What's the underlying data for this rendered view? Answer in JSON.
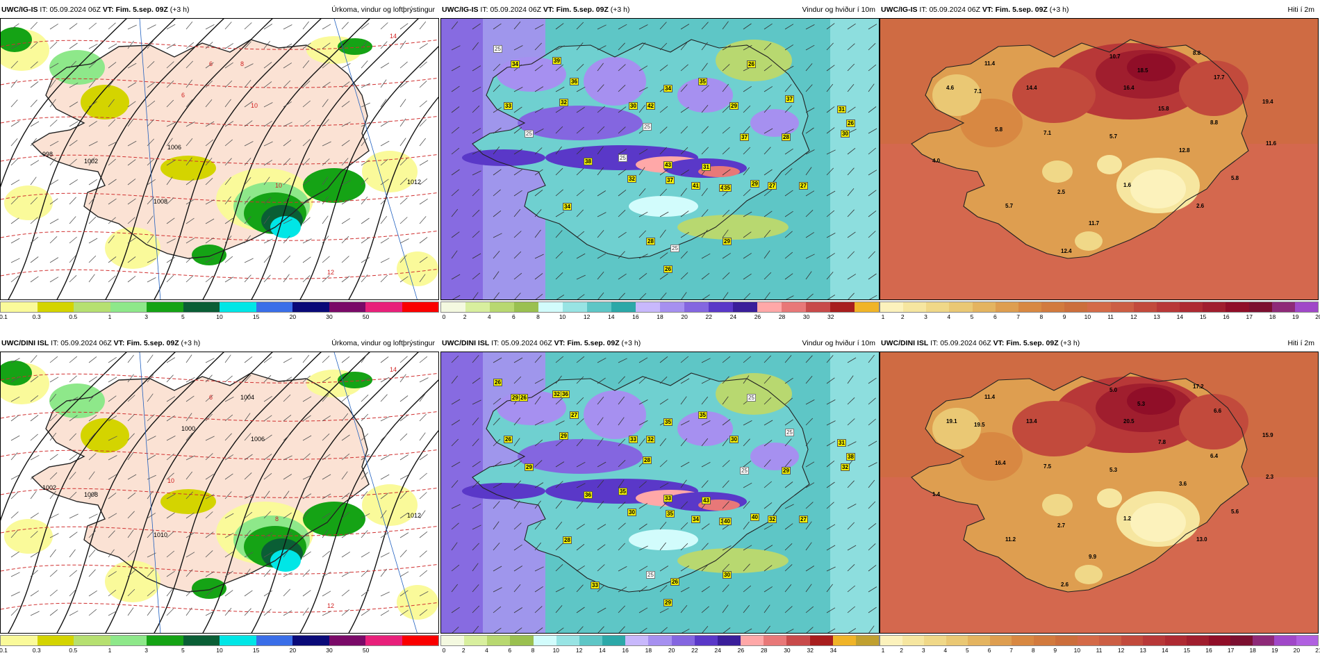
{
  "rows": [
    {
      "model": "UWC/IG-IS",
      "panels": [
        {
          "id": "precip",
          "model": "UWC/IG-IS",
          "it_label": "IT:",
          "it": "05.09.2024 06Z",
          "vt_label": "VT:",
          "vt": "Fim. 5.sep. 09Z",
          "lead": "(+3 h)",
          "title": "Úrkoma, vindur og loftþrýstingur",
          "colorbar": [
            "#fafa9a",
            "#d4d400",
            "#b6e070",
            "#8ee88a",
            "#15a315",
            "#0a5e35",
            "#00e6e6",
            "#3a6ee8",
            "#0a0a78",
            "#7a0a68",
            "#e8207a",
            "#fa0000"
          ],
          "ticks": [
            "0.1",
            "0.3",
            "0.5",
            "1",
            "3",
            "5",
            "10",
            "15",
            "20",
            "30",
            "50"
          ],
          "labels": [
            {
              "t": "14",
              "c": "red"
            },
            {
              "t": "8",
              "c": "red"
            },
            {
              "t": "10",
              "c": "red"
            },
            {
              "t": "6",
              "c": "red"
            },
            {
              "t": "1002",
              "c": "black"
            },
            {
              "t": "1008",
              "c": "black"
            },
            {
              "t": "1012",
              "c": "black"
            },
            {
              "t": "998",
              "c": "black"
            },
            {
              "t": "1006",
              "c": "black"
            },
            {
              "t": "10",
              "c": "red"
            },
            {
              "t": "6",
              "c": "red"
            },
            {
              "t": "12",
              "c": "red"
            }
          ]
        },
        {
          "id": "wind",
          "model": "UWC/IG-IS",
          "it_label": "IT:",
          "it": "05.09.2024 06Z",
          "vt_label": "VT:",
          "vt": "Fim. 5.sep. 09Z",
          "lead": "(+3 h)",
          "title": "Vindur og hviður í 10m",
          "colorbar": [
            "#f4f9e0",
            "#d8ef9e",
            "#b8d870",
            "#9ac050",
            "#d2fcfc",
            "#98e4e4",
            "#5ec6c6",
            "#2ca8a8",
            "#c8b8fc",
            "#a690f0",
            "#8466e0",
            "#5a38c8",
            "#3a1e9a",
            "#ffa8a8",
            "#e87878",
            "#c84a4a",
            "#a81e1e",
            "#f0b428"
          ],
          "ticks": [
            "0",
            "2",
            "4",
            "6",
            "8",
            "10",
            "12",
            "14",
            "16",
            "18",
            "20",
            "22",
            "24",
            "26",
            "28",
            "30",
            "32"
          ],
          "labels": [
            "34",
            "39",
            "25",
            "36",
            "33",
            "32",
            "25",
            "30",
            "42",
            "34",
            "35",
            "25",
            "29",
            "26",
            "37",
            "31",
            "30",
            "26",
            "37",
            "25",
            "38",
            "32",
            "37",
            "43",
            "41",
            "42",
            "35",
            "31",
            "29",
            "27",
            "28",
            "27",
            "34",
            "29",
            "25",
            "28",
            "26"
          ]
        },
        {
          "id": "temp",
          "model": "UWC/IG-IS",
          "it_label": "IT:",
          "it": "05.09.2024 06Z",
          "vt_label": "VT:",
          "vt": "Fim. 5.sep. 09Z",
          "lead": "(+3 h)",
          "title": "Hiti í 2m",
          "colorbar": [
            "#fcf2bc",
            "#f6e6a0",
            "#f0d888",
            "#eac874",
            "#e4b460",
            "#de9e50",
            "#d88842",
            "#d27a3e",
            "#cc6e3c",
            "#d46a48",
            "#cc5e44",
            "#c24a3c",
            "#b83838",
            "#ae2a32",
            "#a01e2e",
            "#900e28",
            "#7c1030",
            "#8e2a78",
            "#a048c8"
          ],
          "ticks": [
            "1",
            "2",
            "3",
            "4",
            "5",
            "6",
            "7",
            "8",
            "9",
            "10",
            "11",
            "12",
            "13",
            "14",
            "15",
            "16",
            "17",
            "18",
            "19",
            "20"
          ],
          "labels": [
            "11.4",
            "10.7",
            "8.8",
            "4.6",
            "7.1",
            "14.4",
            "18.5",
            "16.4",
            "17.7",
            "15.8",
            "19.4",
            "8.8",
            "5.8",
            "7.1",
            "5.7",
            "12.8",
            "11.6",
            "4.0",
            "2.5",
            "1.6",
            "5.8",
            "5.7",
            "2.6",
            "11.7",
            "12.4"
          ]
        }
      ]
    },
    {
      "model": "UWC/DINI ISL",
      "panels": [
        {
          "id": "precip",
          "model": "UWC/DINI ISL",
          "it_label": "IT:",
          "it": "05.09.2024 06Z",
          "vt_label": "VT:",
          "vt": "Fim. 5.sep. 09Z",
          "lead": "(+3 h)",
          "title": "Úrkoma, vindur og loftþrýstingur",
          "colorbar": [
            "#fafa9a",
            "#d4d400",
            "#b6e070",
            "#8ee88a",
            "#15a315",
            "#0a5e35",
            "#00e6e6",
            "#3a6ee8",
            "#0a0a78",
            "#7a0a68",
            "#e8207a",
            "#fa0000"
          ],
          "ticks": [
            "0.1",
            "0.3",
            "0.5",
            "1",
            "3",
            "5",
            "10",
            "15",
            "20",
            "30",
            "50"
          ],
          "labels": [
            {
              "t": "14",
              "c": "red"
            },
            {
              "t": "1004",
              "c": "black"
            },
            {
              "t": "1006",
              "c": "black"
            },
            {
              "t": "1000",
              "c": "black"
            },
            {
              "t": "1008",
              "c": "black"
            },
            {
              "t": "1010",
              "c": "black"
            },
            {
              "t": "1012",
              "c": "black"
            },
            {
              "t": "1002",
              "c": "black"
            },
            {
              "t": "10",
              "c": "red"
            },
            {
              "t": "8",
              "c": "red"
            },
            {
              "t": "6",
              "c": "red"
            },
            {
              "t": "12",
              "c": "red"
            }
          ]
        },
        {
          "id": "wind",
          "model": "UWC/DINI ISL",
          "it_label": "IT:",
          "it": "05.09.2024 06Z",
          "vt_label": "VT:",
          "vt": "Fim. 5.sep. 09Z",
          "lead": "(+3 h)",
          "title": "Vindur og hviður í 10m",
          "colorbar": [
            "#f4f9e0",
            "#d8ef9e",
            "#b8d870",
            "#9ac050",
            "#d2fcfc",
            "#98e4e4",
            "#5ec6c6",
            "#2ca8a8",
            "#c8b8fc",
            "#a690f0",
            "#8466e0",
            "#5a38c8",
            "#3a1e9a",
            "#ffa8a8",
            "#e87878",
            "#c84a4a",
            "#a81e1e",
            "#f0b428",
            "#c0a030"
          ],
          "ticks": [
            "0",
            "2",
            "4",
            "6",
            "8",
            "10",
            "12",
            "14",
            "16",
            "18",
            "20",
            "22",
            "24",
            "26",
            "28",
            "30",
            "32",
            "34"
          ],
          "labels": [
            "29",
            "32",
            "26",
            "27",
            "26",
            "29",
            "29",
            "33",
            "32",
            "35",
            "35",
            "28",
            "30",
            "25",
            "25",
            "31",
            "32",
            "38",
            "25",
            "35",
            "36",
            "30",
            "35",
            "33",
            "34",
            "36",
            "40",
            "43",
            "40",
            "27",
            "29",
            "32",
            "28",
            "30",
            "26",
            "25",
            "29",
            "33",
            "26",
            "36"
          ]
        },
        {
          "id": "temp",
          "model": "UWC/DINI ISL",
          "it_label": "IT:",
          "it": "05.09.2024 06Z",
          "vt_label": "VT:",
          "vt": "Fim. 5.sep. 09Z",
          "lead": "(+3 h)",
          "title": "Hiti í 2m",
          "colorbar": [
            "#fcf2bc",
            "#f6e6a0",
            "#f0d888",
            "#eac874",
            "#e4b460",
            "#de9e50",
            "#d88842",
            "#d27a3e",
            "#cc6e3c",
            "#d46a48",
            "#cc5e44",
            "#c24a3c",
            "#b83838",
            "#ae2a32",
            "#a01e2e",
            "#900e28",
            "#7c1030",
            "#8e2a78",
            "#a048c8",
            "#b060e0"
          ],
          "ticks": [
            "1",
            "2",
            "3",
            "4",
            "5",
            "6",
            "7",
            "8",
            "9",
            "10",
            "11",
            "12",
            "13",
            "14",
            "15",
            "16",
            "17",
            "18",
            "19",
            "20",
            "21"
          ],
          "labels": [
            "11.4",
            "5.0",
            "17.2",
            "19.1",
            "19.5",
            "13.4",
            "5.3",
            "20.5",
            "6.6",
            "7.8",
            "15.9",
            "6.4",
            "16.4",
            "7.5",
            "5.3",
            "3.6",
            "2.3",
            "1.4",
            "2.7",
            "1.2",
            "5.6",
            "11.2",
            "13.0",
            "9.9",
            "2.6"
          ]
        }
      ]
    }
  ]
}
